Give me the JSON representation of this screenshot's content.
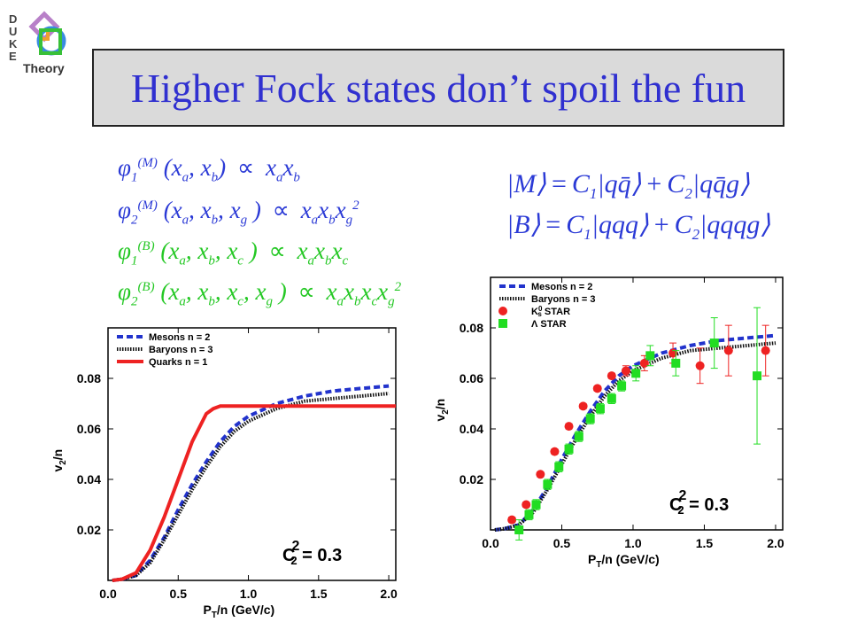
{
  "logo": {
    "letters": [
      "D",
      "U",
      "K",
      "E"
    ],
    "word": "Theory"
  },
  "title": "Higher Fock states don’t spoil the fun",
  "equations": {
    "phi_symbol": "φ",
    "approx": "∝",
    "rows": [
      {
        "sub": "1",
        "sup": "(M)",
        "args": "(x_a, x_b)",
        "rhs": "x_a x_b"
      },
      {
        "sub": "2",
        "sup": "(M)",
        "args": "(x_a, x_b, x_g)",
        "rhs": "x_a x_b x_g^2"
      },
      {
        "sub": "1",
        "sup": "(B)",
        "args": "(x_a, x_b, x_c)",
        "rhs": "x_a x_b x_c"
      },
      {
        "sub": "2",
        "sup": "(B)",
        "args": "(x_a, x_b, x_c, x_g)",
        "rhs": "x_a x_b x_c x_g^2"
      }
    ]
  },
  "states": {
    "meson": {
      "ket": "M",
      "c1": "C",
      "c1_sub": "1",
      "term1": "qq̄",
      "c2": "C",
      "c2_sub": "2",
      "term2": "qq̄g"
    },
    "baryon": {
      "ket": "B",
      "c1": "C",
      "c1_sub": "1",
      "term1": "qqq",
      "c2": "C",
      "c2_sub": "2",
      "term2": "qqqg"
    }
  },
  "colors": {
    "title": "#3030d0",
    "blue": "#2b3ad6",
    "green": "#24c824",
    "red": "#ee2222",
    "black": "#000000"
  },
  "chart_data": [
    {
      "type": "line",
      "xlabel": "P_T/n (GeV/c)",
      "ylabel": "v_2/n",
      "xlim": [
        0,
        2.05
      ],
      "ylim": [
        0,
        0.1
      ],
      "xticks": [
        "0.0",
        "0.5",
        "1.0",
        "1.5",
        "2.0"
      ],
      "yticks": [
        "0.02",
        "0.04",
        "0.06",
        "0.08"
      ],
      "annotation": "C_2^2 = 0.3",
      "legend_position": "top-left",
      "series": [
        {
          "name": "Mesons n = 2",
          "style": "dashed-blue",
          "x": [
            0.03,
            0.1,
            0.2,
            0.3,
            0.4,
            0.5,
            0.6,
            0.7,
            0.8,
            0.9,
            1.0,
            1.2,
            1.4,
            1.6,
            1.8,
            2.0
          ],
          "y": [
            0.0,
            0.0005,
            0.002,
            0.008,
            0.017,
            0.028,
            0.038,
            0.047,
            0.055,
            0.061,
            0.065,
            0.07,
            0.073,
            0.075,
            0.076,
            0.077
          ]
        },
        {
          "name": "Baryons n = 3",
          "style": "dotted-black",
          "x": [
            0.03,
            0.1,
            0.2,
            0.3,
            0.4,
            0.5,
            0.6,
            0.7,
            0.8,
            0.9,
            1.0,
            1.2,
            1.4,
            1.6,
            1.8,
            2.0
          ],
          "y": [
            0.0,
            0.0005,
            0.002,
            0.007,
            0.016,
            0.026,
            0.036,
            0.045,
            0.053,
            0.059,
            0.063,
            0.068,
            0.071,
            0.072,
            0.073,
            0.074
          ]
        },
        {
          "name": "Quarks n = 1",
          "style": "solid-red",
          "x": [
            0.03,
            0.1,
            0.2,
            0.3,
            0.4,
            0.5,
            0.6,
            0.7,
            0.75,
            0.8,
            0.9,
            1.0,
            1.5,
            2.05
          ],
          "y": [
            0.0,
            0.0005,
            0.003,
            0.012,
            0.025,
            0.04,
            0.055,
            0.066,
            0.068,
            0.069,
            0.069,
            0.069,
            0.069,
            0.069
          ]
        }
      ]
    },
    {
      "type": "line",
      "xlabel": "P_T/n (GeV/c)",
      "ylabel": "v_2/n",
      "xlim": [
        0,
        2.05
      ],
      "ylim": [
        0,
        0.1
      ],
      "xticks": [
        "0.0",
        "0.5",
        "1.0",
        "1.5",
        "2.0"
      ],
      "yticks": [
        "0.02",
        "0.04",
        "0.06",
        "0.08"
      ],
      "annotation": "C_2^2 = 0.3",
      "legend_position": "top-left",
      "series": [
        {
          "name": "Mesons n = 2",
          "style": "dashed-blue",
          "x": [
            0.03,
            0.1,
            0.2,
            0.3,
            0.4,
            0.5,
            0.6,
            0.7,
            0.8,
            0.9,
            1.0,
            1.2,
            1.4,
            1.6,
            1.8,
            2.0
          ],
          "y": [
            0.0,
            0.0005,
            0.002,
            0.008,
            0.017,
            0.028,
            0.038,
            0.047,
            0.055,
            0.061,
            0.065,
            0.07,
            0.073,
            0.075,
            0.076,
            0.077
          ]
        },
        {
          "name": "Baryons n = 3",
          "style": "dotted-black",
          "x": [
            0.03,
            0.1,
            0.2,
            0.3,
            0.4,
            0.5,
            0.6,
            0.7,
            0.8,
            0.9,
            1.0,
            1.2,
            1.4,
            1.6,
            1.8,
            2.0
          ],
          "y": [
            0.0,
            0.0005,
            0.002,
            0.007,
            0.016,
            0.026,
            0.036,
            0.045,
            0.053,
            0.059,
            0.063,
            0.068,
            0.071,
            0.072,
            0.073,
            0.074
          ]
        },
        {
          "name": "K^0_s STAR",
          "style": "red-circle",
          "points": [
            {
              "x": 0.15,
              "y": 0.004,
              "err": 0.001
            },
            {
              "x": 0.25,
              "y": 0.01,
              "err": 0.001
            },
            {
              "x": 0.35,
              "y": 0.022,
              "err": 0.001
            },
            {
              "x": 0.45,
              "y": 0.031,
              "err": 0.001
            },
            {
              "x": 0.55,
              "y": 0.041,
              "err": 0.001
            },
            {
              "x": 0.65,
              "y": 0.049,
              "err": 0.001
            },
            {
              "x": 0.75,
              "y": 0.056,
              "err": 0.001
            },
            {
              "x": 0.85,
              "y": 0.061,
              "err": 0.001
            },
            {
              "x": 0.95,
              "y": 0.063,
              "err": 0.002
            },
            {
              "x": 1.08,
              "y": 0.066,
              "err": 0.003
            },
            {
              "x": 1.28,
              "y": 0.07,
              "err": 0.004
            },
            {
              "x": 1.47,
              "y": 0.065,
              "err": 0.007
            },
            {
              "x": 1.67,
              "y": 0.071,
              "err": 0.01
            },
            {
              "x": 1.93,
              "y": 0.071,
              "err": 0.01
            }
          ]
        },
        {
          "name": "Λ STAR",
          "style": "green-square",
          "points": [
            {
              "x": 0.2,
              "y": 0.0,
              "err": 0.004
            },
            {
              "x": 0.27,
              "y": 0.006,
              "err": 0.002
            },
            {
              "x": 0.32,
              "y": 0.01,
              "err": 0.002
            },
            {
              "x": 0.4,
              "y": 0.018,
              "err": 0.002
            },
            {
              "x": 0.48,
              "y": 0.025,
              "err": 0.002
            },
            {
              "x": 0.55,
              "y": 0.032,
              "err": 0.002
            },
            {
              "x": 0.62,
              "y": 0.037,
              "err": 0.002
            },
            {
              "x": 0.7,
              "y": 0.044,
              "err": 0.002
            },
            {
              "x": 0.77,
              "y": 0.048,
              "err": 0.002
            },
            {
              "x": 0.85,
              "y": 0.052,
              "err": 0.002
            },
            {
              "x": 0.92,
              "y": 0.057,
              "err": 0.002
            },
            {
              "x": 1.02,
              "y": 0.062,
              "err": 0.003
            },
            {
              "x": 1.12,
              "y": 0.069,
              "err": 0.004
            },
            {
              "x": 1.3,
              "y": 0.066,
              "err": 0.005
            },
            {
              "x": 1.57,
              "y": 0.074,
              "err": 0.01
            },
            {
              "x": 1.87,
              "y": 0.061,
              "err": 0.027
            }
          ]
        }
      ]
    }
  ]
}
